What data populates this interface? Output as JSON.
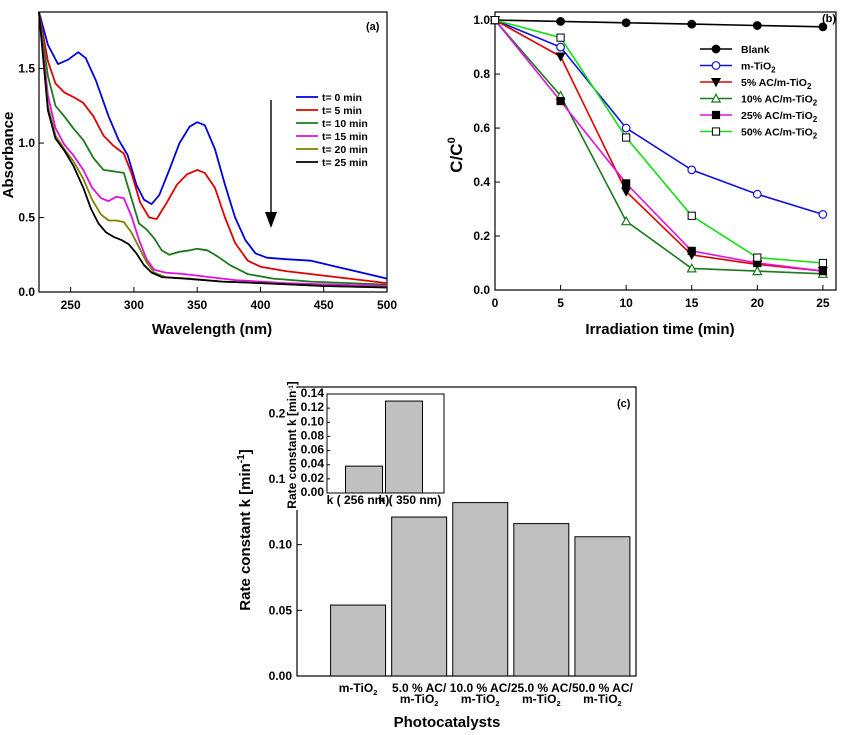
{
  "chart_data": [
    {
      "panel": "(a)",
      "type": "line",
      "xlabel": "Wavelength (nm)",
      "ylabel": "Absorbance",
      "xlim": [
        225,
        500
      ],
      "ylim": [
        0,
        1.88
      ],
      "xticks": [
        250,
        300,
        350,
        400,
        450,
        500
      ],
      "yticks": [
        0.0,
        0.5,
        1.0,
        1.5
      ],
      "ytick_labels": [
        "0.0",
        "0.5",
        "1.0",
        "1.5"
      ],
      "legend": "right",
      "annotation": "down arrow near 410 nm indicating decreasing absorbance with time",
      "series": [
        {
          "name": "t= 0 min",
          "color": "#0000e0",
          "points": [
            [
              225,
              1.88
            ],
            [
              232,
              1.66
            ],
            [
              240,
              1.53
            ],
            [
              248,
              1.56
            ],
            [
              256,
              1.61
            ],
            [
              262,
              1.57
            ],
            [
              270,
              1.42
            ],
            [
              280,
              1.18
            ],
            [
              288,
              1.02
            ],
            [
              295,
              0.92
            ],
            [
              302,
              0.72
            ],
            [
              308,
              0.62
            ],
            [
              314,
              0.59
            ],
            [
              320,
              0.65
            ],
            [
              328,
              0.82
            ],
            [
              336,
              1.0
            ],
            [
              344,
              1.11
            ],
            [
              350,
              1.14
            ],
            [
              356,
              1.12
            ],
            [
              364,
              0.96
            ],
            [
              372,
              0.72
            ],
            [
              380,
              0.5
            ],
            [
              388,
              0.35
            ],
            [
              396,
              0.26
            ],
            [
              405,
              0.23
            ],
            [
              420,
              0.22
            ],
            [
              440,
              0.21
            ],
            [
              460,
              0.17
            ],
            [
              480,
              0.13
            ],
            [
              500,
              0.09
            ]
          ]
        },
        {
          "name": "t= 5 min",
          "color": "#e00000",
          "points": [
            [
              225,
              1.88
            ],
            [
              232,
              1.55
            ],
            [
              238,
              1.4
            ],
            [
              245,
              1.34
            ],
            [
              252,
              1.31
            ],
            [
              260,
              1.27
            ],
            [
              268,
              1.18
            ],
            [
              276,
              1.05
            ],
            [
              284,
              0.98
            ],
            [
              292,
              0.93
            ],
            [
              298,
              0.8
            ],
            [
              305,
              0.6
            ],
            [
              312,
              0.5
            ],
            [
              318,
              0.49
            ],
            [
              326,
              0.6
            ],
            [
              334,
              0.72
            ],
            [
              342,
              0.79
            ],
            [
              350,
              0.82
            ],
            [
              356,
              0.8
            ],
            [
              364,
              0.7
            ],
            [
              372,
              0.5
            ],
            [
              380,
              0.33
            ],
            [
              390,
              0.21
            ],
            [
              400,
              0.17
            ],
            [
              420,
              0.14
            ],
            [
              440,
              0.12
            ],
            [
              460,
              0.1
            ],
            [
              480,
              0.08
            ],
            [
              500,
              0.06
            ]
          ]
        },
        {
          "name": "t= 10 min",
          "color": "#1b7a1b",
          "points": [
            [
              225,
              1.88
            ],
            [
              232,
              1.45
            ],
            [
              238,
              1.25
            ],
            [
              245,
              1.18
            ],
            [
              252,
              1.1
            ],
            [
              260,
              1.02
            ],
            [
              268,
              0.9
            ],
            [
              276,
              0.82
            ],
            [
              284,
              0.81
            ],
            [
              292,
              0.8
            ],
            [
              298,
              0.63
            ],
            [
              304,
              0.46
            ],
            [
              310,
              0.42
            ],
            [
              316,
              0.36
            ],
            [
              322,
              0.28
            ],
            [
              328,
              0.25
            ],
            [
              336,
              0.27
            ],
            [
              344,
              0.28
            ],
            [
              350,
              0.29
            ],
            [
              358,
              0.28
            ],
            [
              366,
              0.24
            ],
            [
              376,
              0.18
            ],
            [
              390,
              0.12
            ],
            [
              410,
              0.09
            ],
            [
              440,
              0.07
            ],
            [
              470,
              0.06
            ],
            [
              500,
              0.05
            ]
          ]
        },
        {
          "name": "t= 15 min",
          "color": "#e010e0",
          "points": [
            [
              225,
              1.88
            ],
            [
              232,
              1.32
            ],
            [
              238,
              1.1
            ],
            [
              245,
              0.99
            ],
            [
              252,
              0.92
            ],
            [
              260,
              0.82
            ],
            [
              267,
              0.7
            ],
            [
              274,
              0.63
            ],
            [
              280,
              0.61
            ],
            [
              286,
              0.64
            ],
            [
              292,
              0.63
            ],
            [
              298,
              0.51
            ],
            [
              304,
              0.35
            ],
            [
              310,
              0.22
            ],
            [
              316,
              0.15
            ],
            [
              325,
              0.13
            ],
            [
              340,
              0.12
            ],
            [
              360,
              0.1
            ],
            [
              380,
              0.08
            ],
            [
              420,
              0.06
            ],
            [
              460,
              0.05
            ],
            [
              500,
              0.04
            ]
          ]
        },
        {
          "name": "t= 20 min",
          "color": "#808000",
          "points": [
            [
              225,
              1.88
            ],
            [
              232,
              1.25
            ],
            [
              238,
              1.05
            ],
            [
              245,
              0.96
            ],
            [
              252,
              0.88
            ],
            [
              260,
              0.76
            ],
            [
              267,
              0.62
            ],
            [
              274,
              0.52
            ],
            [
              280,
              0.48
            ],
            [
              286,
              0.48
            ],
            [
              292,
              0.47
            ],
            [
              298,
              0.4
            ],
            [
              304,
              0.3
            ],
            [
              310,
              0.2
            ],
            [
              316,
              0.13
            ],
            [
              325,
              0.1
            ],
            [
              345,
              0.09
            ],
            [
              370,
              0.07
            ],
            [
              400,
              0.06
            ],
            [
              450,
              0.04
            ],
            [
              500,
              0.03
            ]
          ]
        },
        {
          "name": "t= 25 min",
          "color": "#000000",
          "points": [
            [
              225,
              1.88
            ],
            [
              232,
              1.22
            ],
            [
              238,
              1.03
            ],
            [
              245,
              0.95
            ],
            [
              252,
              0.85
            ],
            [
              260,
              0.7
            ],
            [
              266,
              0.56
            ],
            [
              272,
              0.46
            ],
            [
              278,
              0.4
            ],
            [
              284,
              0.37
            ],
            [
              290,
              0.35
            ],
            [
              296,
              0.32
            ],
            [
              302,
              0.26
            ],
            [
              308,
              0.18
            ],
            [
              314,
              0.13
            ],
            [
              322,
              0.1
            ],
            [
              340,
              0.09
            ],
            [
              370,
              0.07
            ],
            [
              400,
              0.06
            ],
            [
              450,
              0.04
            ],
            [
              500,
              0.03
            ]
          ]
        }
      ]
    },
    {
      "panel": "(b)",
      "type": "line",
      "xlabel": "Irradiation time (min)",
      "ylabel": "C/C0",
      "xlim": [
        0,
        26
      ],
      "ylim": [
        0,
        1.03
      ],
      "xticks": [
        0,
        5,
        10,
        15,
        20,
        25
      ],
      "yticks": [
        0.0,
        0.2,
        0.4,
        0.6,
        0.8,
        1.0
      ],
      "ytick_labels": [
        "0.0",
        "0.2",
        "0.4",
        "0.6",
        "0.8",
        "1.0"
      ],
      "legend": "right",
      "x": [
        0,
        5,
        10,
        15,
        20,
        25
      ],
      "series": [
        {
          "name": "Blank",
          "color": "#000000",
          "marker": "circle-filled",
          "values": [
            1.0,
            0.995,
            0.99,
            0.985,
            0.98,
            0.975
          ]
        },
        {
          "name": "m-TiO",
          "sub": "2",
          "color": "#1010e0",
          "marker": "circle-open",
          "values": [
            1.0,
            0.9,
            0.6,
            0.445,
            0.355,
            0.28
          ]
        },
        {
          "name": "5% AC/m-TiO",
          "sub": "2",
          "color": "#e00000",
          "marker": "triangle-down-filled",
          "values": [
            1.0,
            0.865,
            0.365,
            0.13,
            0.095,
            0.07
          ]
        },
        {
          "name": "10% AC/m-TiO",
          "sub": "2",
          "color": "#1b7a1b",
          "marker": "triangle-up-open",
          "values": [
            1.0,
            0.72,
            0.255,
            0.08,
            0.07,
            0.06
          ]
        },
        {
          "name": "25% AC/m-TiO",
          "sub": "2",
          "color": "#e010e0",
          "marker": "square-filled",
          "values": [
            1.0,
            0.7,
            0.395,
            0.145,
            0.1,
            0.07
          ]
        },
        {
          "name": "50% AC/m-TiO",
          "sub": "2",
          "color": "#10e010",
          "marker": "square-open",
          "values": [
            1.0,
            0.935,
            0.565,
            0.275,
            0.12,
            0.1
          ]
        }
      ]
    },
    {
      "panel": "(c)",
      "type": "bar",
      "xlabel": "Photocatalysts",
      "ylabel": "Rate constant k [min",
      "ylabel_sup": "-1",
      "ylabel_close": "]",
      "ylim": [
        0,
        0.22
      ],
      "yticks": [
        0.0,
        0.05,
        0.1,
        0.15,
        0.2
      ],
      "ytick_labels": [
        "0.00",
        "0.05",
        "0.10",
        "0.15",
        "0.20"
      ],
      "bar_color": "#c0c0c0",
      "categories": [
        {
          "line1": "m-TiO",
          "sub1": "2",
          "line2": "",
          "sub2": ""
        },
        {
          "line1": "5.0 % AC/",
          "sub1": "",
          "line2": "m-TiO",
          "sub2": "2"
        },
        {
          "line1": "10.0 % AC/",
          "sub1": "",
          "line2": "m-TiO",
          "sub2": "2"
        },
        {
          "line1": "25.0 % AC/",
          "sub1": "",
          "line2": "m-TiO",
          "sub2": "2"
        },
        {
          "line1": "50.0 % AC/",
          "sub1": "",
          "line2": "m-TiO",
          "sub2": "2"
        }
      ],
      "values": [
        0.054,
        0.121,
        0.132,
        0.116,
        0.106
      ],
      "inset": {
        "type": "bar",
        "ylabel": "Rate constant k [min",
        "ylabel_sup": "-1",
        "ylabel_close": "]",
        "ylim": [
          0,
          0.14
        ],
        "yticks": [
          0.0,
          0.02,
          0.04,
          0.06,
          0.08,
          0.1,
          0.12,
          0.14
        ],
        "ytick_labels": [
          "0.00",
          "0.02",
          "0.04",
          "0.06",
          "0.08",
          "0.10",
          "0.12",
          "0.14"
        ],
        "categories": [
          "k ( 256 nm)",
          "k ( 350 nm)"
        ],
        "values": [
          0.038,
          0.13
        ]
      }
    }
  ]
}
